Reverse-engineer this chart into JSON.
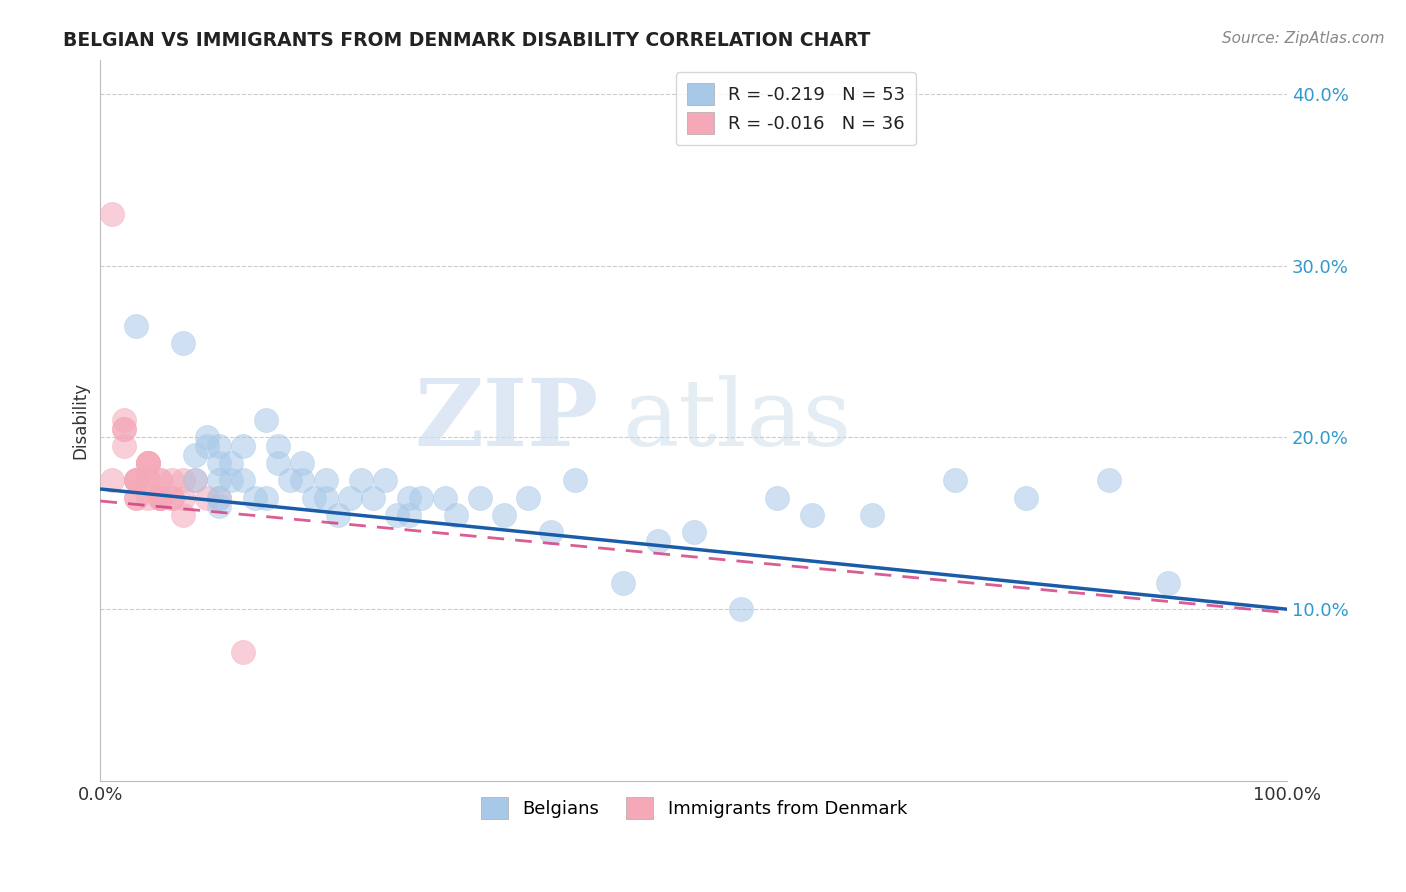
{
  "title": "BELGIAN VS IMMIGRANTS FROM DENMARK DISABILITY CORRELATION CHART",
  "source": "Source: ZipAtlas.com",
  "xlabel": "",
  "ylabel": "Disability",
  "xlim": [
    0,
    1.0
  ],
  "ylim": [
    0,
    0.42
  ],
  "yticks": [
    0.1,
    0.2,
    0.3,
    0.4
  ],
  "ytick_labels": [
    "10.0%",
    "20.0%",
    "30.0%",
    "40.0%"
  ],
  "xticks": [
    0.0,
    0.25,
    0.5,
    0.75,
    1.0
  ],
  "xtick_labels": [
    "0.0%",
    "",
    "",
    "",
    "100.0%"
  ],
  "legend_entry1": "R = -0.219   N = 53",
  "legend_entry2": "R = -0.016   N = 36",
  "blue_color": "#a8c8e8",
  "pink_color": "#f4a8b8",
  "blue_line_color": "#1a5ca8",
  "pink_line_color": "#d44080",
  "blue_scatter_x": [
    0.03,
    0.07,
    0.08,
    0.08,
    0.09,
    0.09,
    0.1,
    0.1,
    0.1,
    0.1,
    0.1,
    0.11,
    0.11,
    0.12,
    0.12,
    0.13,
    0.14,
    0.14,
    0.15,
    0.15,
    0.16,
    0.17,
    0.17,
    0.18,
    0.19,
    0.19,
    0.2,
    0.21,
    0.22,
    0.23,
    0.24,
    0.25,
    0.26,
    0.26,
    0.27,
    0.29,
    0.3,
    0.32,
    0.34,
    0.36,
    0.38,
    0.4,
    0.44,
    0.47,
    0.5,
    0.54,
    0.57,
    0.6,
    0.65,
    0.72,
    0.78,
    0.85,
    0.9
  ],
  "blue_scatter_y": [
    0.265,
    0.255,
    0.19,
    0.175,
    0.2,
    0.195,
    0.195,
    0.185,
    0.175,
    0.165,
    0.16,
    0.185,
    0.175,
    0.195,
    0.175,
    0.165,
    0.21,
    0.165,
    0.195,
    0.185,
    0.175,
    0.185,
    0.175,
    0.165,
    0.165,
    0.175,
    0.155,
    0.165,
    0.175,
    0.165,
    0.175,
    0.155,
    0.165,
    0.155,
    0.165,
    0.165,
    0.155,
    0.165,
    0.155,
    0.165,
    0.145,
    0.175,
    0.115,
    0.14,
    0.145,
    0.1,
    0.165,
    0.155,
    0.155,
    0.175,
    0.165,
    0.175,
    0.115
  ],
  "pink_scatter_x": [
    0.01,
    0.01,
    0.02,
    0.02,
    0.02,
    0.02,
    0.03,
    0.03,
    0.03,
    0.03,
    0.03,
    0.03,
    0.04,
    0.04,
    0.04,
    0.04,
    0.04,
    0.04,
    0.04,
    0.05,
    0.05,
    0.05,
    0.05,
    0.05,
    0.05,
    0.05,
    0.06,
    0.06,
    0.06,
    0.07,
    0.07,
    0.07,
    0.08,
    0.09,
    0.1,
    0.12
  ],
  "pink_scatter_y": [
    0.33,
    0.175,
    0.21,
    0.205,
    0.195,
    0.205,
    0.175,
    0.175,
    0.175,
    0.175,
    0.165,
    0.165,
    0.175,
    0.175,
    0.165,
    0.185,
    0.185,
    0.185,
    0.185,
    0.165,
    0.165,
    0.165,
    0.175,
    0.175,
    0.165,
    0.165,
    0.165,
    0.165,
    0.175,
    0.175,
    0.165,
    0.155,
    0.175,
    0.165,
    0.165,
    0.075
  ],
  "watermark_zip": "ZIP",
  "watermark_atlas": "atlas"
}
